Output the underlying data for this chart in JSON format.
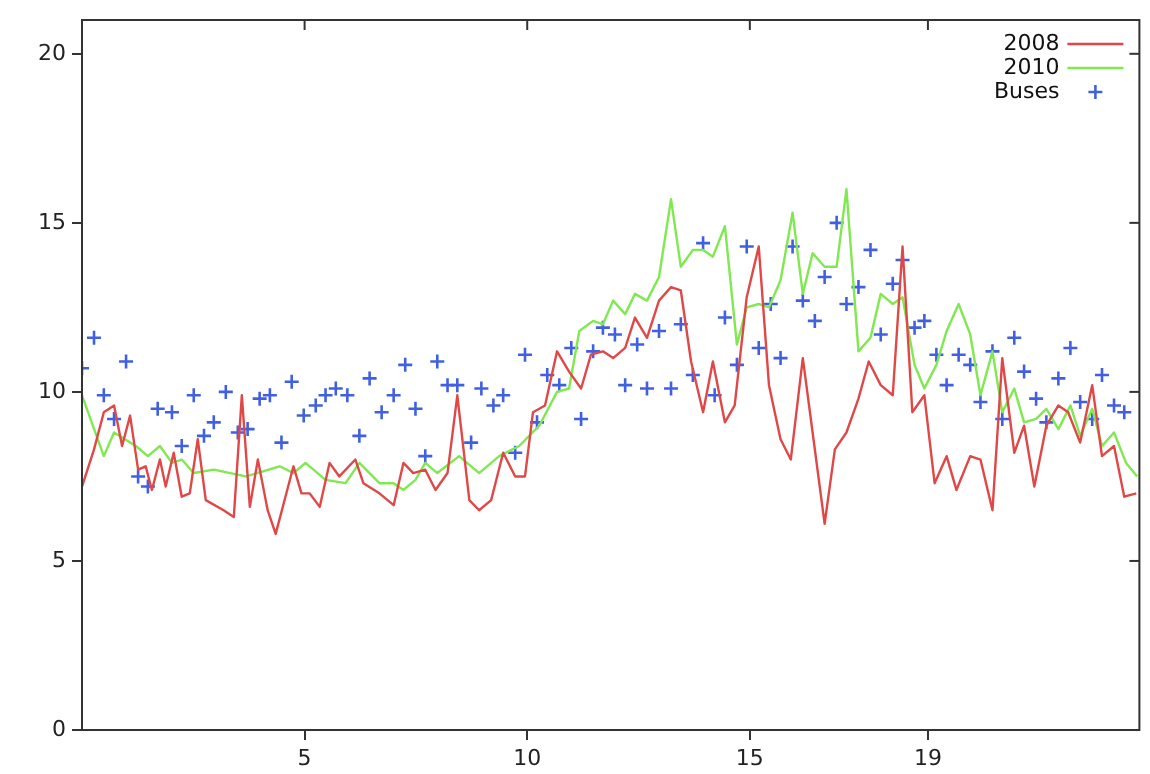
{
  "chart_data": {
    "type": "line",
    "xlim": [
      0,
      23.75
    ],
    "ylim": [
      0,
      21
    ],
    "xticks": [
      5,
      10,
      15,
      19
    ],
    "yticks": [
      0,
      5,
      10,
      15,
      20
    ],
    "grid": false,
    "legend": "top right",
    "line_style": "solid",
    "series": [
      {
        "name": "2008",
        "type": "line",
        "marker": "none",
        "color": "#e04848",
        "x": [
          0,
          0.27,
          0.49,
          0.72,
          0.9,
          1.08,
          1.26,
          1.43,
          1.57,
          1.75,
          1.88,
          2.06,
          2.24,
          2.42,
          2.6,
          2.78,
          3.18,
          3.41,
          3.59,
          3.77,
          3.95,
          4.17,
          4.35,
          4.75,
          4.93,
          5.11,
          5.34,
          5.56,
          5.78,
          6.14,
          6.32,
          6.68,
          7.0,
          7.22,
          7.44,
          7.71,
          7.94,
          8.21,
          8.43,
          8.7,
          8.92,
          9.19,
          9.46,
          9.73,
          9.95,
          10.13,
          10.4,
          10.67,
          10.94,
          11.21,
          11.43,
          11.7,
          11.93,
          12.2,
          12.42,
          12.69,
          12.96,
          13.23,
          13.45,
          13.68,
          13.95,
          14.17,
          14.44,
          14.66,
          14.93,
          15.2,
          15.43,
          15.69,
          15.92,
          16.19,
          16.41,
          16.68,
          16.91,
          17.17,
          17.44,
          17.67,
          17.94,
          18.21,
          18.43,
          18.65,
          18.92,
          19.15,
          19.42,
          19.64,
          19.95,
          20.18,
          20.45,
          20.67,
          20.94,
          21.16,
          21.39,
          21.66,
          21.93,
          22.15,
          22.42,
          22.69,
          22.91,
          23.18,
          23.41,
          23.68
        ],
        "values": [
          7.2,
          8.3,
          9.4,
          9.6,
          8.4,
          9.3,
          7.7,
          7.8,
          7.1,
          8.0,
          7.2,
          8.2,
          6.9,
          7.0,
          8.6,
          6.8,
          6.5,
          6.3,
          9.9,
          6.6,
          8.0,
          6.5,
          5.8,
          7.8,
          7.0,
          7.0,
          6.6,
          7.9,
          7.5,
          8.0,
          7.3,
          7.0,
          6.65,
          7.9,
          7.6,
          7.7,
          7.1,
          7.6,
          9.9,
          6.8,
          6.5,
          6.8,
          8.2,
          7.5,
          7.5,
          9.4,
          9.6,
          11.2,
          10.6,
          10.1,
          11.1,
          11.2,
          11.0,
          11.3,
          12.2,
          11.6,
          12.7,
          13.1,
          13.0,
          10.9,
          9.4,
          10.9,
          9.1,
          9.6,
          12.8,
          14.3,
          10.2,
          8.6,
          8.0,
          11.0,
          8.8,
          6.1,
          8.3,
          8.8,
          9.8,
          10.9,
          10.2,
          9.9,
          14.3,
          9.4,
          9.9,
          7.3,
          8.1,
          7.1,
          8.1,
          8.0,
          6.5,
          11.0,
          8.2,
          9.0,
          7.2,
          9.0,
          9.6,
          9.4,
          8.5,
          10.2,
          8.1,
          8.4,
          6.9,
          7.0
        ]
      },
      {
        "name": "2010",
        "type": "line",
        "marker": "none",
        "color": "#80e850",
        "x": [
          0,
          0.49,
          0.72,
          1.21,
          1.48,
          1.75,
          2.02,
          2.24,
          2.51,
          2.96,
          3.68,
          4.44,
          4.75,
          5.02,
          5.47,
          5.92,
          6.23,
          6.68,
          7.0,
          7.22,
          7.49,
          7.71,
          7.98,
          8.47,
          8.92,
          9.37,
          9.82,
          10.27,
          10.67,
          10.94,
          11.17,
          11.48,
          11.7,
          11.93,
          12.2,
          12.42,
          12.69,
          12.96,
          13.23,
          13.45,
          13.72,
          13.95,
          14.17,
          14.44,
          14.71,
          14.93,
          15.2,
          15.43,
          15.69,
          15.96,
          16.19,
          16.41,
          16.68,
          16.95,
          17.17,
          17.44,
          17.71,
          17.94,
          18.21,
          18.43,
          18.7,
          18.92,
          19.19,
          19.42,
          19.69,
          19.95,
          20.18,
          20.45,
          20.67,
          20.94,
          21.16,
          21.43,
          21.66,
          21.93,
          22.2,
          22.42,
          22.69,
          22.91,
          23.18,
          23.45,
          23.7
        ],
        "values": [
          9.9,
          8.1,
          8.8,
          8.4,
          8.1,
          8.4,
          7.9,
          8.0,
          7.6,
          7.7,
          7.5,
          7.8,
          7.6,
          7.9,
          7.4,
          7.3,
          7.9,
          7.3,
          7.3,
          7.1,
          7.4,
          7.9,
          7.6,
          8.1,
          7.6,
          8.1,
          8.4,
          9.0,
          10.0,
          10.1,
          11.8,
          12.1,
          12.0,
          12.7,
          12.3,
          12.9,
          12.7,
          13.4,
          15.7,
          13.7,
          14.2,
          14.2,
          14.0,
          14.9,
          11.4,
          12.5,
          12.6,
          12.5,
          13.3,
          15.3,
          12.9,
          14.1,
          13.7,
          13.7,
          16.0,
          11.2,
          11.6,
          12.9,
          12.6,
          12.8,
          10.8,
          10.1,
          10.8,
          11.8,
          12.6,
          11.7,
          9.9,
          11.2,
          9.4,
          10.1,
          9.1,
          9.2,
          9.5,
          8.9,
          9.6,
          8.7,
          9.5,
          8.4,
          8.8,
          7.9,
          7.5
        ]
      },
      {
        "name": "Buses",
        "type": "scatter",
        "marker": "cross",
        "color": "#4060e0",
        "x": [
          0,
          0.27,
          0.49,
          0.72,
          0.99,
          1.26,
          1.48,
          1.7,
          2.02,
          2.24,
          2.51,
          2.74,
          2.96,
          3.23,
          3.5,
          3.72,
          3.99,
          4.22,
          4.48,
          4.71,
          4.98,
          5.25,
          5.47,
          5.7,
          5.96,
          6.23,
          6.46,
          6.73,
          7.0,
          7.26,
          7.49,
          7.71,
          7.98,
          8.21,
          8.43,
          8.74,
          8.97,
          9.24,
          9.46,
          9.73,
          9.95,
          10.22,
          10.45,
          10.72,
          10.99,
          11.21,
          11.48,
          11.7,
          11.97,
          12.2,
          12.47,
          12.69,
          12.96,
          13.23,
          13.45,
          13.72,
          13.95,
          14.21,
          14.44,
          14.71,
          14.93,
          15.2,
          15.47,
          15.69,
          15.96,
          16.19,
          16.46,
          16.68,
          16.95,
          17.17,
          17.44,
          17.71,
          17.94,
          18.21,
          18.43,
          18.7,
          18.92,
          19.19,
          19.42,
          19.69,
          19.95,
          20.18,
          20.45,
          20.67,
          20.94,
          21.16,
          21.43,
          21.66,
          21.93,
          22.2,
          22.42,
          22.69,
          22.91,
          23.18,
          23.41
        ],
        "values": [
          10.7,
          11.6,
          9.9,
          9.2,
          10.9,
          7.5,
          7.2,
          9.5,
          9.4,
          8.4,
          9.9,
          8.7,
          9.1,
          10.0,
          8.8,
          8.9,
          9.8,
          9.9,
          8.5,
          10.3,
          9.3,
          9.6,
          9.9,
          10.1,
          9.9,
          8.7,
          10.4,
          9.4,
          9.9,
          10.8,
          9.5,
          8.1,
          10.9,
          10.2,
          10.2,
          8.5,
          10.1,
          9.6,
          9.9,
          8.2,
          11.1,
          9.1,
          10.5,
          10.2,
          11.3,
          9.2,
          11.2,
          11.9,
          11.7,
          10.2,
          11.4,
          10.1,
          11.8,
          10.1,
          12.0,
          10.5,
          14.4,
          9.9,
          12.2,
          10.8,
          14.3,
          11.3,
          12.6,
          11.0,
          14.3,
          12.7,
          12.1,
          13.4,
          15.0,
          12.6,
          13.1,
          14.2,
          11.7,
          13.2,
          13.9,
          11.9,
          12.1,
          11.1,
          10.2,
          11.1,
          10.8,
          9.7,
          11.2,
          9.2,
          11.6,
          10.6,
          9.8,
          9.1,
          10.4,
          11.3,
          9.7,
          9.2,
          10.5,
          9.6,
          9.4
        ]
      }
    ]
  }
}
